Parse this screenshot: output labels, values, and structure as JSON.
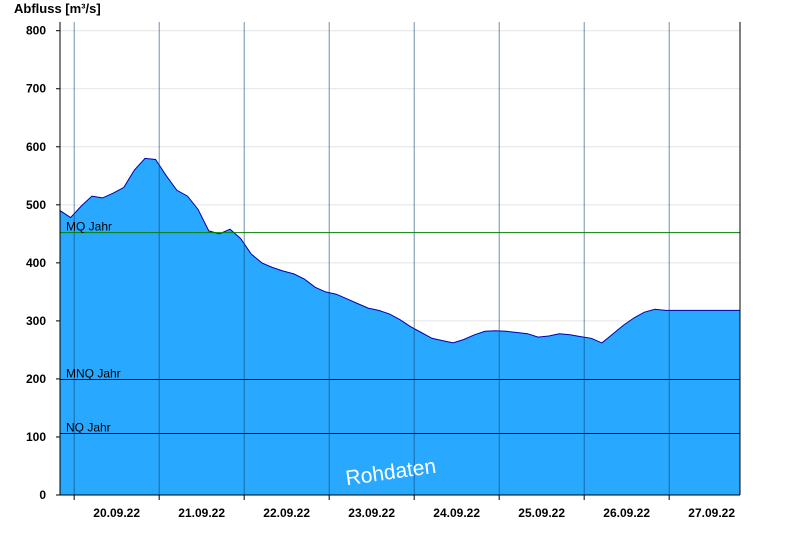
{
  "chart_data": {
    "type": "area",
    "ylabel": "Abfluss [m³/s]",
    "ylim": [
      0,
      815
    ],
    "yticks": [
      0,
      100,
      200,
      300,
      400,
      500,
      600,
      700,
      800
    ],
    "x_range_days": [
      "19.09.22 20:00",
      "27.09.22 20:00"
    ],
    "xticks": [
      "20.09.22",
      "21.09.22",
      "22.09.22",
      "23.09.22",
      "24.09.22",
      "25.09.22",
      "26.09.22",
      "27.09.22"
    ],
    "watermark": "Rohdaten",
    "fill_color": "#29a8ff",
    "line_color": "#0000aa",
    "reference_lines": [
      {
        "label": "MQ Jahr",
        "value": 452,
        "color": "#008000"
      },
      {
        "label": "MNQ Jahr",
        "value": 199,
        "color": "#000000"
      },
      {
        "label": "NQ Jahr",
        "value": 106,
        "color": "#000000"
      }
    ],
    "series": [
      {
        "x": [
          "19.09.22 20:00",
          "19.09.22 23:00",
          "20.09.22 02:00",
          "20.09.22 05:00",
          "20.09.22 08:00",
          "20.09.22 11:00",
          "20.09.22 14:00",
          "20.09.22 17:00",
          "20.09.22 20:00",
          "20.09.22 23:00",
          "21.09.22 02:00",
          "21.09.22 05:00",
          "21.09.22 08:00",
          "21.09.22 11:00",
          "21.09.22 14:00",
          "21.09.22 17:00",
          "21.09.22 20:00",
          "21.09.22 23:00",
          "22.09.22 02:00",
          "22.09.22 05:00",
          "22.09.22 08:00",
          "22.09.22 11:00",
          "22.09.22 14:00",
          "22.09.22 17:00",
          "22.09.22 20:00",
          "22.09.22 23:00",
          "23.09.22 02:00",
          "23.09.22 05:00",
          "23.09.22 08:00",
          "23.09.22 11:00",
          "23.09.22 14:00",
          "23.09.22 17:00",
          "23.09.22 20:00",
          "23.09.22 23:00",
          "24.09.22 02:00",
          "24.09.22 05:00",
          "24.09.22 08:00",
          "24.09.22 11:00",
          "24.09.22 14:00",
          "24.09.22 17:00",
          "24.09.22 20:00",
          "24.09.22 23:00",
          "25.09.22 02:00",
          "25.09.22 05:00",
          "25.09.22 08:00",
          "25.09.22 11:00",
          "25.09.22 14:00",
          "25.09.22 17:00",
          "25.09.22 20:00",
          "25.09.22 23:00",
          "26.09.22 02:00",
          "26.09.22 05:00",
          "26.09.22 08:00",
          "26.09.22 11:00",
          "26.09.22 14:00",
          "26.09.22 17:00",
          "26.09.22 20:00",
          "26.09.22 23:00",
          "27.09.22 02:00",
          "27.09.22 05:00",
          "27.09.22 08:00",
          "27.09.22 11:00",
          "27.09.22 14:00",
          "27.09.22 17:00",
          "27.09.22 20:00"
        ],
        "y": [
          490,
          478,
          498,
          515,
          512,
          520,
          530,
          560,
          580,
          578,
          550,
          525,
          515,
          492,
          455,
          450,
          458,
          442,
          415,
          400,
          392,
          386,
          381,
          372,
          358,
          350,
          346,
          338,
          330,
          322,
          318,
          312,
          302,
          290,
          280,
          270,
          266,
          262,
          268,
          276,
          282,
          283,
          282,
          280,
          278,
          272,
          274,
          278,
          276,
          273,
          270,
          262,
          277,
          292,
          305,
          315,
          320,
          318,
          318,
          318,
          318,
          318,
          318,
          318,
          318
        ]
      }
    ]
  }
}
